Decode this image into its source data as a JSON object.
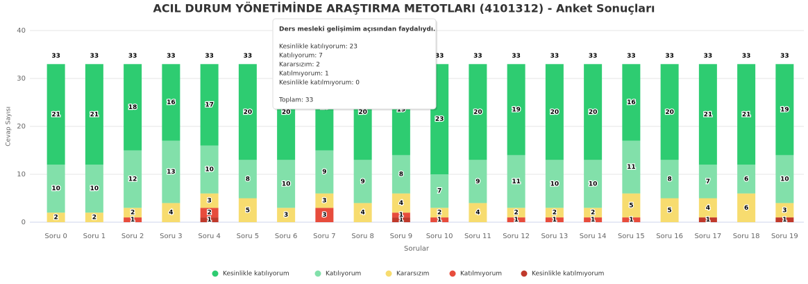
{
  "chart_data": {
    "type": "stacked_bar",
    "title": "ACIL DURUM YÖNETİMİNDE ARAŞTIRMA METOTLARI (4101312) - Anket Sonuçları",
    "x_label": "Sorular",
    "y_label": "Cevap Sayısı",
    "categories": [
      "Soru 0",
      "Soru 1",
      "Soru 2",
      "Soru 3",
      "Soru 4",
      "Soru 5",
      "Soru 6",
      "Soru 7",
      "Soru 8",
      "Soru 9",
      "Soru 10",
      "Soru 11",
      "Soru 12",
      "Soru 13",
      "Soru 14",
      "Soru 15",
      "Soru 16",
      "Soru 17",
      "Soru 18",
      "Soru 19"
    ],
    "series": [
      {
        "name": "Kesinlikle katılmıyorum",
        "color": "#c0392b",
        "values": [
          0,
          0,
          0,
          0,
          1,
          0,
          0,
          0,
          0,
          1,
          0,
          0,
          0,
          0,
          0,
          0,
          0,
          1,
          0,
          1
        ]
      },
      {
        "name": "Katılmıyorum",
        "color": "#e74c3c",
        "values": [
          0,
          0,
          1,
          0,
          2,
          0,
          0,
          3,
          0,
          1,
          1,
          0,
          1,
          1,
          1,
          1,
          0,
          0,
          0,
          0
        ]
      },
      {
        "name": "Kararsızım",
        "color": "#f7dc6f",
        "values": [
          2,
          2,
          2,
          4,
          3,
          5,
          3,
          3,
          4,
          4,
          2,
          4,
          2,
          2,
          2,
          5,
          5,
          4,
          6,
          3
        ]
      },
      {
        "name": "Katılıyorum",
        "color": "#82e0aa",
        "values": [
          10,
          10,
          12,
          13,
          10,
          8,
          10,
          9,
          9,
          8,
          7,
          9,
          11,
          10,
          10,
          11,
          8,
          7,
          6,
          10
        ]
      },
      {
        "name": "Kesinlikle katılıyorum",
        "color": "#2ecc71",
        "values": [
          21,
          21,
          18,
          16,
          17,
          20,
          20,
          18,
          20,
          19,
          23,
          20,
          19,
          20,
          20,
          16,
          20,
          21,
          21,
          19
        ]
      }
    ],
    "totals": [
      33,
      33,
      33,
      33,
      33,
      33,
      33,
      33,
      33,
      33,
      33,
      33,
      33,
      33,
      33,
      33,
      33,
      33,
      33,
      33
    ],
    "ylim": [
      0,
      40
    ],
    "yticks": [
      0,
      10,
      20,
      30,
      40
    ],
    "grid": true,
    "tooltip": {
      "title": "Ders mesleki gelişimim açısından faydalıydı.",
      "lines": [
        "Kesinlikle katılıyorum: 23",
        "Katılıyorum: 7",
        "Kararsızım: 2",
        "Katılmıyorum: 1",
        "Kesinlikle katılmıyorum: 0"
      ],
      "total": "Toplam: 33"
    }
  }
}
